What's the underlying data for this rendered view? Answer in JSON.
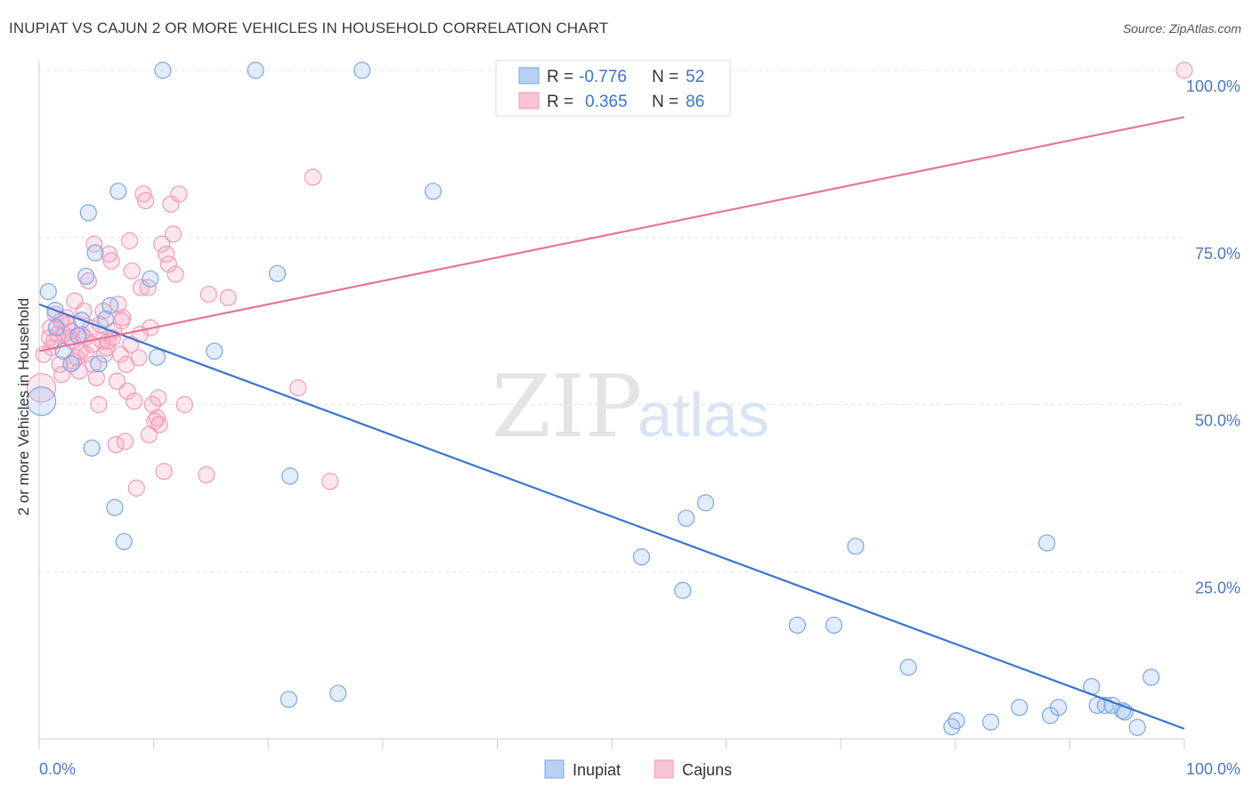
{
  "header": {
    "title": "INUPIAT VS CAJUN 2 OR MORE VEHICLES IN HOUSEHOLD CORRELATION CHART",
    "source": "Source: ZipAtlas.com"
  },
  "watermark": {
    "part1": "ZIP",
    "part2": "atlas"
  },
  "legend_box": {
    "rows": [
      {
        "r_label": "R =",
        "r_value": "-0.776",
        "n_label": "N =",
        "n_value": "52"
      },
      {
        "r_label": "R =",
        "r_value": "0.365",
        "n_label": "N =",
        "n_value": "86"
      }
    ]
  },
  "chart_data": {
    "type": "scatter",
    "title": "INUPIAT VS CAJUN 2 OR MORE VEHICLES IN HOUSEHOLD CORRELATION CHART",
    "xlabel": "",
    "ylabel": "2 or more Vehicles in Household",
    "xlim": [
      0,
      100
    ],
    "ylim": [
      0,
      100
    ],
    "x_tick_labels": [
      "0.0%",
      "100.0%"
    ],
    "y_tick_labels": [
      "25.0%",
      "50.0%",
      "75.0%",
      "100.0%"
    ],
    "y_ticks": [
      25,
      50,
      75,
      100
    ],
    "grid": true,
    "legend_position": "bottom",
    "colors": {
      "Inupiat": "#7aa7e6",
      "Cajuns": "#f299b8",
      "Inupiat_line": "#3a75d0",
      "Cajuns_line": "#e8749a"
    },
    "series": [
      {
        "name": "Inupiat",
        "r": -0.776,
        "n": 52,
        "trend": {
          "x": [
            0,
            100
          ],
          "y": [
            65,
            1.5
          ]
        },
        "points": [
          [
            0.2,
            50.5
          ],
          [
            0.8,
            66.9
          ],
          [
            1.4,
            64.1
          ],
          [
            2.8,
            56.1
          ],
          [
            3.4,
            60.3
          ],
          [
            3.7,
            62.6
          ],
          [
            4.1,
            69.2
          ],
          [
            4.3,
            78.7
          ],
          [
            4.6,
            43.5
          ],
          [
            4.9,
            72.7
          ],
          [
            5.2,
            56.1
          ],
          [
            5.8,
            62.8
          ],
          [
            6.2,
            64.8
          ],
          [
            6.6,
            34.6
          ],
          [
            6.9,
            81.9
          ],
          [
            7.4,
            29.5
          ],
          [
            9.7,
            68.8
          ],
          [
            10.3,
            57.1
          ],
          [
            10.8,
            100
          ],
          [
            15.3,
            58.0
          ],
          [
            18.9,
            100
          ],
          [
            20.8,
            69.6
          ],
          [
            21.8,
            5.9
          ],
          [
            21.9,
            39.3
          ],
          [
            26.1,
            6.8
          ],
          [
            28.2,
            100
          ],
          [
            34.4,
            81.9
          ],
          [
            52.6,
            27.2
          ],
          [
            56.2,
            22.2
          ],
          [
            56.5,
            33.0
          ],
          [
            58.2,
            35.3
          ],
          [
            66.2,
            17.0
          ],
          [
            69.4,
            17.0
          ],
          [
            71.3,
            28.8
          ],
          [
            75.9,
            10.7
          ],
          [
            79.7,
            1.8
          ],
          [
            80.1,
            2.7
          ],
          [
            83.1,
            2.5
          ],
          [
            85.6,
            4.7
          ],
          [
            88.3,
            3.5
          ],
          [
            89.0,
            4.7
          ],
          [
            91.9,
            7.8
          ],
          [
            92.4,
            5.0
          ],
          [
            93.1,
            5.0
          ],
          [
            93.7,
            5.0
          ],
          [
            94.6,
            4.2
          ],
          [
            94.8,
            4.0
          ],
          [
            95.9,
            1.7
          ],
          [
            97.1,
            9.2
          ],
          [
            88.0,
            29.3
          ],
          [
            1.5,
            61.5
          ],
          [
            2.1,
            58.0
          ]
        ]
      },
      {
        "name": "Cajuns",
        "r": 0.365,
        "n": 86,
        "trend": {
          "x": [
            0,
            100
          ],
          "y": [
            58,
            93
          ]
        },
        "points": [
          [
            0.2,
            52.5
          ],
          [
            0.4,
            57.5
          ],
          [
            0.9,
            60.0
          ],
          [
            1.1,
            58.5
          ],
          [
            1.4,
            63.5
          ],
          [
            1.6,
            60.5
          ],
          [
            1.8,
            56.0
          ],
          [
            2.0,
            54.5
          ],
          [
            2.2,
            60.5
          ],
          [
            2.5,
            62.0
          ],
          [
            2.8,
            61.0
          ],
          [
            2.9,
            59.5
          ],
          [
            3.1,
            65.5
          ],
          [
            3.3,
            57.0
          ],
          [
            3.5,
            55.0
          ],
          [
            3.7,
            60.5
          ],
          [
            3.9,
            64.0
          ],
          [
            4.1,
            57.5
          ],
          [
            4.3,
            68.5
          ],
          [
            4.5,
            61.5
          ],
          [
            4.7,
            56.0
          ],
          [
            4.8,
            74.0
          ],
          [
            5.0,
            54.0
          ],
          [
            5.2,
            50.0
          ],
          [
            5.5,
            59.5
          ],
          [
            5.7,
            57.5
          ],
          [
            5.9,
            58.5
          ],
          [
            6.1,
            72.5
          ],
          [
            6.3,
            71.5
          ],
          [
            6.5,
            61.0
          ],
          [
            6.7,
            44.0
          ],
          [
            6.9,
            65.0
          ],
          [
            7.1,
            57.5
          ],
          [
            7.3,
            63.0
          ],
          [
            7.5,
            44.5
          ],
          [
            7.7,
            52.0
          ],
          [
            7.9,
            74.5
          ],
          [
            8.1,
            70.0
          ],
          [
            8.3,
            50.5
          ],
          [
            8.5,
            37.5
          ],
          [
            8.7,
            57.0
          ],
          [
            8.9,
            67.5
          ],
          [
            9.1,
            81.5
          ],
          [
            9.3,
            80.5
          ],
          [
            9.5,
            67.5
          ],
          [
            9.7,
            61.5
          ],
          [
            9.9,
            50.0
          ],
          [
            10.1,
            47.5
          ],
          [
            10.3,
            48.0
          ],
          [
            10.5,
            47.0
          ],
          [
            10.7,
            74.0
          ],
          [
            10.9,
            40.0
          ],
          [
            11.1,
            72.5
          ],
          [
            11.3,
            71.0
          ],
          [
            11.5,
            80.0
          ],
          [
            11.7,
            75.5
          ],
          [
            11.9,
            69.5
          ],
          [
            12.2,
            81.5
          ],
          [
            12.7,
            50.0
          ],
          [
            14.6,
            39.5
          ],
          [
            14.8,
            66.5
          ],
          [
            16.5,
            66.0
          ],
          [
            22.6,
            52.5
          ],
          [
            23.9,
            84.0
          ],
          [
            25.4,
            38.5
          ],
          [
            100,
            100
          ],
          [
            1.0,
            61.5
          ],
          [
            1.3,
            59.5
          ],
          [
            2.4,
            63.0
          ],
          [
            3.6,
            58.0
          ],
          [
            4.0,
            60.0
          ],
          [
            4.6,
            59.0
          ],
          [
            5.3,
            62.0
          ],
          [
            6.0,
            59.5
          ],
          [
            6.4,
            60.0
          ],
          [
            7.2,
            62.5
          ],
          [
            8.0,
            59.0
          ],
          [
            8.8,
            60.5
          ],
          [
            9.6,
            45.5
          ],
          [
            10.4,
            51.0
          ],
          [
            3.0,
            56.5
          ],
          [
            2.6,
            60.0
          ],
          [
            5.6,
            64.0
          ],
          [
            6.8,
            53.5
          ],
          [
            7.6,
            56.0
          ],
          [
            1.9,
            62.5
          ]
        ]
      }
    ]
  },
  "bottom_legend": {
    "items": [
      "Inupiat",
      "Cajuns"
    ]
  }
}
